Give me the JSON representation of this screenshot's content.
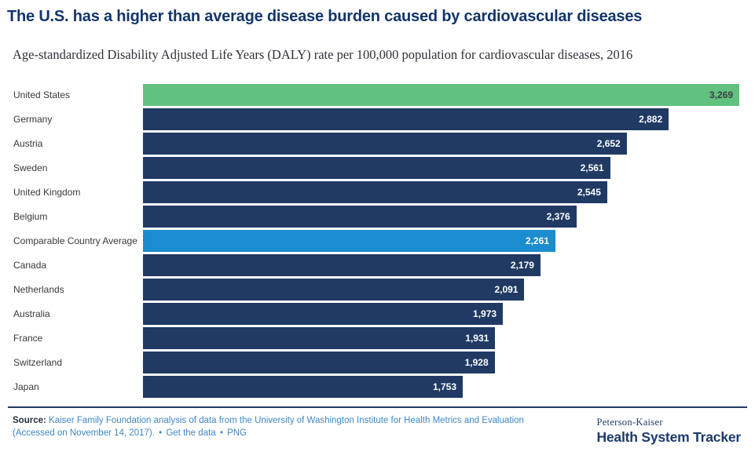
{
  "page": {
    "title": "The U.S. has a higher than average disease burden caused by cardiovascular diseases",
    "subtitle": "Age-standardized Disability Adjusted Life Years (DALY) rate per 100,000 population for cardiovascular diseases, 2016"
  },
  "chart_data": {
    "type": "bar",
    "orientation": "horizontal",
    "title": "The U.S. has a higher than average disease burden caused by cardiovascular diseases",
    "subtitle": "Age-standardized Disability Adjusted Life Years (DALY) rate per 100,000 population for cardiovascular diseases, 2016",
    "categories": [
      "United States",
      "Germany",
      "Austria",
      "Sweden",
      "United Kingdom",
      "Belgium",
      "Comparable Country Average",
      "Canada",
      "Netherlands",
      "Australia",
      "France",
      "Switzerland",
      "Japan"
    ],
    "values": [
      3269,
      2882,
      2652,
      2561,
      2545,
      2376,
      2261,
      2179,
      2091,
      1973,
      1931,
      1928,
      1753
    ],
    "value_labels": [
      "3,269",
      "2,882",
      "2,652",
      "2,561",
      "2,545",
      "2,376",
      "2,261",
      "2,179",
      "2,091",
      "1,973",
      "1,931",
      "1,928",
      "1,753"
    ],
    "xlim": [
      0,
      3269
    ],
    "highlight_index": 0,
    "average_index": 6,
    "grid": false,
    "legend": false,
    "colors": {
      "us_bar": "#62c17e",
      "default_bar": "#203a64",
      "average_bar": "#1b8ccd",
      "value_on_us": "#3a4045",
      "value_on_dark": "#ffffff"
    }
  },
  "footer": {
    "source_prefix": "Source:",
    "source_link": "Kaiser Family Foundation analysis of data from the University of Washington Institute for Health Metrics and Evaluation (Accessed on November 14, 2017).",
    "separator": "•",
    "get_the_data": "Get the data",
    "png": "PNG",
    "logo_top": "Peterson-Kaiser",
    "logo_bottom": "Health System Tracker"
  }
}
